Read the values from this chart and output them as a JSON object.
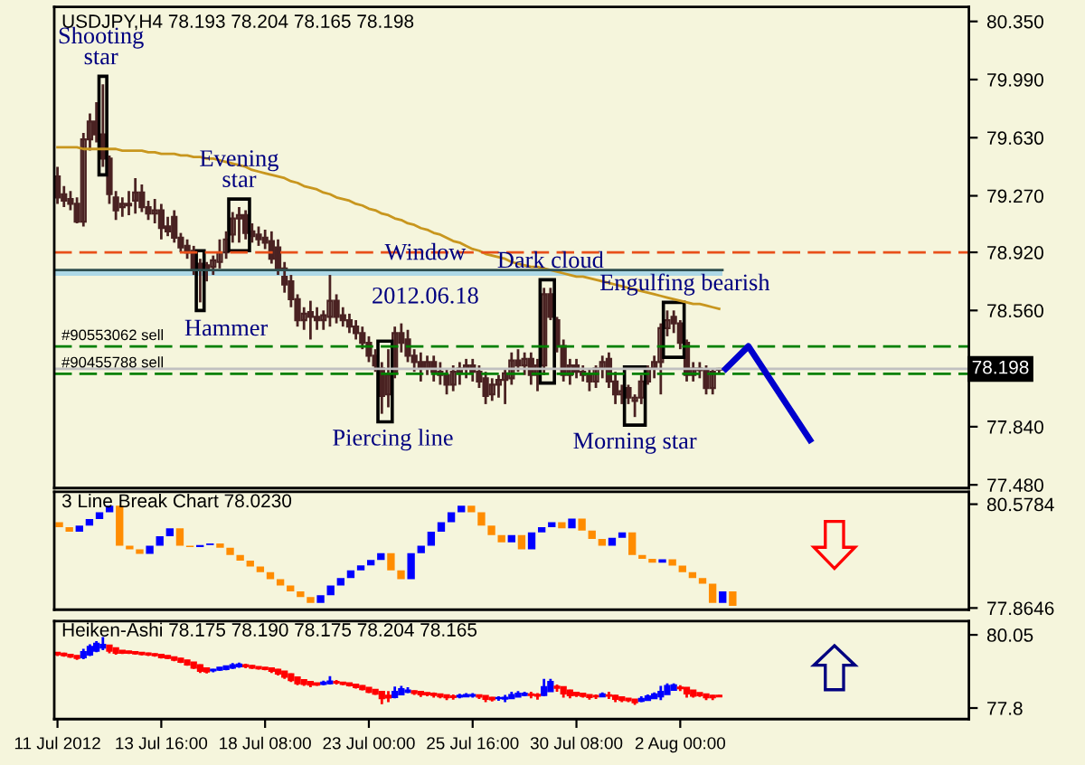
{
  "chart_data": [
    {
      "type": "candlestick",
      "title": "USDJPY,H4 78.193 78.204 78.165 78.198",
      "color": "#4a2222",
      "tick_labels": "y",
      "grid": false,
      "categories": [
        null,
        null,
        null,
        null,
        null,
        null,
        null,
        null,
        null,
        null,
        null,
        null,
        null,
        null,
        null,
        null,
        null,
        null,
        null,
        null,
        null,
        null,
        null,
        null,
        null,
        null,
        null,
        null,
        null,
        null,
        null,
        null,
        null,
        null,
        null,
        null,
        null,
        null,
        null,
        null,
        null,
        null,
        null,
        null,
        null,
        null,
        null,
        null,
        null,
        null,
        null,
        null,
        null,
        null,
        null,
        null,
        null,
        null,
        null,
        null,
        null,
        null,
        null,
        null,
        null,
        null,
        null,
        null,
        null,
        null,
        null,
        null,
        null,
        null,
        null,
        null,
        null,
        null,
        null,
        null,
        null,
        null,
        null,
        null,
        null,
        null,
        null,
        null,
        null,
        null,
        null,
        null,
        null,
        null,
        null,
        null,
        null,
        null,
        null,
        null,
        null,
        null,
        null,
        null,
        null,
        null,
        null,
        null,
        null,
        null,
        null,
        null,
        null,
        null,
        null,
        null,
        null,
        null,
        null,
        null,
        null,
        null,
        null,
        null,
        null,
        null,
        null,
        null,
        null,
        null,
        null,
        null,
        null,
        null,
        null,
        null,
        null,
        null,
        null,
        null,
        null
      ],
      "ohlc": [
        [
          79.39,
          79.45,
          79.22,
          79.26
        ],
        [
          79.28,
          79.33,
          79.2,
          79.24
        ],
        [
          79.25,
          79.3,
          79.18,
          79.22
        ],
        [
          79.22,
          79.26,
          79.1,
          79.11
        ],
        [
          79.11,
          79.66,
          79.08,
          79.62
        ],
        [
          79.62,
          79.78,
          79.55,
          79.73
        ],
        [
          79.73,
          79.85,
          79.6,
          79.65
        ],
        [
          79.65,
          79.96,
          79.45,
          79.5
        ],
        [
          79.5,
          79.52,
          79.22,
          79.28
        ],
        [
          79.26,
          79.3,
          79.12,
          79.18
        ],
        [
          79.2,
          79.26,
          79.14,
          79.22
        ],
        [
          79.22,
          79.3,
          79.15,
          79.21
        ],
        [
          79.24,
          79.38,
          79.16,
          79.29
        ],
        [
          79.29,
          79.34,
          79.17,
          79.2
        ],
        [
          79.2,
          79.24,
          79.12,
          79.16
        ],
        [
          79.16,
          79.25,
          79.1,
          79.18
        ],
        [
          79.18,
          79.22,
          79.0,
          79.07
        ],
        [
          79.08,
          79.14,
          79.02,
          79.05
        ],
        [
          79.14,
          79.18,
          78.98,
          79.01
        ],
        [
          79.01,
          79.04,
          78.92,
          78.95
        ],
        [
          78.96,
          79.0,
          78.88,
          78.92
        ],
        [
          78.93,
          78.96,
          78.78,
          78.82
        ],
        [
          78.85,
          78.88,
          78.61,
          78.8
        ],
        [
          78.8,
          78.86,
          78.74,
          78.84
        ],
        [
          78.83,
          78.9,
          78.78,
          78.87
        ],
        [
          78.86,
          79.0,
          78.82,
          78.92
        ],
        [
          78.92,
          79.05,
          78.88,
          79.0
        ],
        [
          79.03,
          79.17,
          78.98,
          79.13
        ],
        [
          79.13,
          79.2,
          78.98,
          79.15
        ],
        [
          79.15,
          79.18,
          79.0,
          79.04
        ],
        [
          79.05,
          79.1,
          78.98,
          79.02
        ],
        [
          79.03,
          79.08,
          78.96,
          79.0
        ],
        [
          79.01,
          79.06,
          78.94,
          78.98
        ],
        [
          78.99,
          79.05,
          78.85,
          78.88
        ],
        [
          78.95,
          79.0,
          78.78,
          78.82
        ],
        [
          78.82,
          78.86,
          78.67,
          78.72
        ],
        [
          78.74,
          78.78,
          78.58,
          78.63
        ],
        [
          78.63,
          78.66,
          78.46,
          78.5
        ],
        [
          78.5,
          78.58,
          78.44,
          78.54
        ],
        [
          78.55,
          78.62,
          78.38,
          78.52
        ],
        [
          78.52,
          78.58,
          78.44,
          78.5
        ],
        [
          78.5,
          78.56,
          78.44,
          78.53
        ],
        [
          78.52,
          78.78,
          78.46,
          78.62
        ],
        [
          78.62,
          78.66,
          78.48,
          78.52
        ],
        [
          78.53,
          78.58,
          78.46,
          78.5
        ],
        [
          78.5,
          78.54,
          78.42,
          78.46
        ],
        [
          78.46,
          78.5,
          78.38,
          78.42
        ],
        [
          78.42,
          78.46,
          78.32,
          78.36
        ],
        [
          78.36,
          78.4,
          78.24,
          78.28
        ],
        [
          78.28,
          78.32,
          78.18,
          78.22
        ],
        [
          78.2,
          78.24,
          77.92,
          78.03
        ],
        [
          78.04,
          78.32,
          77.96,
          78.16
        ],
        [
          78.17,
          78.46,
          78.14,
          78.42
        ],
        [
          78.42,
          78.48,
          78.3,
          78.36
        ],
        [
          78.38,
          78.44,
          78.24,
          78.28
        ],
        [
          78.28,
          78.32,
          78.18,
          78.24
        ],
        [
          78.24,
          78.3,
          78.12,
          78.2
        ],
        [
          78.2,
          78.28,
          78.16,
          78.24
        ],
        [
          78.24,
          78.28,
          78.12,
          78.18
        ],
        [
          78.18,
          78.24,
          78.1,
          78.16
        ],
        [
          78.16,
          78.2,
          78.04,
          78.1
        ],
        [
          78.1,
          78.22,
          78.06,
          78.18
        ],
        [
          78.18,
          78.24,
          78.1,
          78.2
        ],
        [
          78.2,
          78.26,
          78.14,
          78.22
        ],
        [
          78.22,
          78.26,
          78.12,
          78.18
        ],
        [
          78.18,
          78.22,
          78.08,
          78.12
        ],
        [
          78.14,
          78.18,
          77.98,
          78.03
        ],
        [
          78.04,
          78.14,
          78.0,
          78.1
        ],
        [
          78.1,
          78.16,
          78.02,
          78.13
        ],
        [
          78.13,
          78.2,
          77.98,
          78.17
        ],
        [
          78.14,
          78.3,
          78.1,
          78.25
        ],
        [
          78.25,
          78.32,
          78.18,
          78.22
        ],
        [
          78.22,
          78.3,
          78.16,
          78.26
        ],
        [
          78.26,
          78.3,
          78.1,
          78.16
        ],
        [
          78.16,
          78.26,
          78.06,
          78.22
        ],
        [
          78.22,
          78.7,
          78.16,
          78.66
        ],
        [
          78.66,
          78.7,
          78.5,
          78.52
        ],
        [
          78.5,
          78.52,
          78.3,
          78.34
        ],
        [
          78.34,
          78.38,
          78.12,
          78.16
        ],
        [
          78.16,
          78.26,
          78.1,
          78.22
        ],
        [
          78.22,
          78.26,
          78.14,
          78.18
        ],
        [
          78.18,
          78.22,
          78.12,
          78.16
        ],
        [
          78.16,
          78.2,
          78.06,
          78.12
        ],
        [
          78.12,
          78.22,
          78.08,
          78.2
        ],
        [
          78.2,
          78.28,
          78.14,
          78.24
        ],
        [
          78.26,
          78.3,
          78.08,
          78.12
        ],
        [
          78.12,
          78.18,
          77.98,
          78.04
        ],
        [
          78.04,
          78.1,
          77.98,
          78.06
        ],
        [
          78.08,
          78.1,
          77.98,
          78.02
        ],
        [
          78.0,
          78.04,
          77.9,
          78.02
        ],
        [
          78.02,
          78.16,
          77.98,
          78.12
        ],
        [
          78.12,
          78.22,
          78.1,
          78.2
        ],
        [
          78.2,
          78.28,
          78.14,
          78.24
        ],
        [
          78.24,
          78.48,
          78.04,
          78.45
        ],
        [
          78.45,
          78.56,
          78.4,
          78.5
        ],
        [
          78.52,
          78.56,
          78.42,
          78.48
        ],
        [
          78.48,
          78.5,
          78.32,
          78.36
        ],
        [
          78.36,
          78.38,
          78.12,
          78.16
        ],
        [
          78.16,
          78.24,
          78.12,
          78.2
        ],
        [
          78.2,
          78.24,
          78.14,
          78.19
        ],
        [
          78.19,
          78.22,
          78.04,
          78.08
        ],
        [
          78.08,
          78.2,
          78.04,
          78.18
        ],
        [
          78.193,
          78.204,
          78.165,
          78.198
        ],
        null,
        null,
        null,
        null,
        null,
        null,
        null,
        null,
        null,
        null,
        null,
        null,
        null,
        null,
        null,
        null,
        null,
        null,
        null,
        null,
        null,
        null,
        null,
        null,
        null,
        null,
        null,
        null,
        null,
        null,
        null,
        null,
        null,
        null,
        null,
        null,
        null,
        null
      ],
      "series": [
        {
          "type": "line",
          "color": "#c8961e",
          "values": [
            79.57,
            79.57,
            79.57,
            79.57,
            79.56,
            79.56,
            79.56,
            79.56,
            79.56,
            79.56,
            79.55,
            79.55,
            79.55,
            79.55,
            79.54,
            79.54,
            79.53,
            79.53,
            79.53,
            79.52,
            79.52,
            79.51,
            79.51,
            79.5,
            79.5,
            79.49,
            79.48,
            79.47,
            79.46,
            79.45,
            79.43,
            79.42,
            79.41,
            79.4,
            79.39,
            79.38,
            79.36,
            79.35,
            79.33,
            79.32,
            79.31,
            79.29,
            79.28,
            79.26,
            79.25,
            79.24,
            79.22,
            79.21,
            79.19,
            79.18,
            79.16,
            79.15,
            79.13,
            79.12,
            79.1,
            79.09,
            79.07,
            79.06,
            79.04,
            79.03,
            79.01,
            78.99,
            78.98,
            78.96,
            78.94,
            78.93,
            78.91,
            78.9,
            78.89,
            78.88,
            78.86,
            78.85,
            78.84,
            78.83,
            78.83,
            78.82,
            78.81,
            78.8,
            78.79,
            78.78,
            78.77,
            78.77,
            78.76,
            78.75,
            78.74,
            78.73,
            78.72,
            78.71,
            78.7,
            78.69,
            78.68,
            78.67,
            78.66,
            78.65,
            78.64,
            78.63,
            78.62,
            78.61,
            78.6,
            78.6,
            78.59,
            78.58,
            78.57,
            null,
            null,
            null,
            null,
            null,
            null,
            null,
            null,
            null,
            null,
            null,
            null,
            null,
            null,
            null,
            null,
            null,
            null,
            null,
            null,
            null,
            null,
            null,
            null,
            null,
            null,
            null,
            null,
            null,
            null,
            null,
            null,
            null,
            null,
            null,
            null,
            null,
            null
          ]
        }
      ],
      "ylim": [
        77.46,
        80.44
      ],
      "yticks": [
        {
          "value": 80.35,
          "label": "80.350"
        },
        {
          "value": 79.99,
          "label": "79.990"
        },
        {
          "value": 79.63,
          "label": "79.630"
        },
        {
          "value": 79.27,
          "label": "79.270"
        },
        {
          "value": 78.92,
          "label": "78.920"
        },
        {
          "value": 78.56,
          "label": "78.560"
        },
        {
          "value": 77.84,
          "label": "77.840"
        },
        {
          "value": 77.48,
          "label": "77.480"
        }
      ],
      "ref_lines": [
        {
          "axis": "y",
          "value": 78.92,
          "color": "#e8501a",
          "line_style": "dashed"
        },
        {
          "axis": "y",
          "value": 78.337,
          "label": "#90553062 sell",
          "color": "#008000",
          "line_style": "dashed"
        },
        {
          "axis": "y",
          "value": 78.168,
          "label": "#90455788 sell",
          "color": "#008000",
          "line_style": "dashed"
        },
        {
          "axis": "y",
          "value": 78.198,
          "label": "78.198",
          "color": "#c0c0c0",
          "line_style": "solid"
        }
      ],
      "bands": [
        {
          "axis": "y",
          "from": 78.775,
          "to": 78.81,
          "label": "Window",
          "color": "#add8e6"
        }
      ],
      "annotations": [
        {
          "text": "Shooting\nstar",
          "y": 79.96
        },
        {
          "text": "Evening\nstar",
          "y": 79.2
        },
        "Hammer",
        "2012.06.18",
        {
          "text": "Dark cloud",
          "y": 78.7
        },
        {
          "text": "Engulfing bearish",
          "y": 78.56
        },
        {
          "text": "Piercing line",
          "y": 77.92
        },
        {
          "text": "Morning star",
          "y": 77.9
        }
      ]
    },
    {
      "type": "bar",
      "title": "3 Line Break Chart 78.0230",
      "tick_labels": "y",
      "grid": false,
      "categories": [
        null,
        null,
        null,
        null,
        null,
        null,
        null,
        null,
        null,
        null,
        null,
        null,
        null,
        null,
        null,
        null,
        null,
        null,
        null,
        null,
        null,
        null,
        null,
        null,
        null,
        null,
        null,
        null,
        null,
        null,
        null,
        null,
        null,
        null,
        null,
        null,
        null,
        null,
        null,
        null,
        null,
        null,
        null,
        null,
        null,
        null,
        null,
        null,
        null,
        null,
        null,
        null,
        null,
        null,
        null,
        null,
        null,
        null,
        null,
        null,
        null,
        null,
        null,
        null,
        null,
        null,
        null,
        null,
        null,
        null,
        null,
        null,
        null,
        null,
        null,
        null,
        null,
        null,
        null,
        null,
        null,
        null,
        null,
        null,
        null,
        null,
        null,
        null,
        null,
        null,
        null
      ],
      "base": [
        80.11,
        79.98,
        79.86,
        80.02,
        80.19,
        80.37,
        80.54,
        79.49,
        79.4,
        79.28,
        79.49,
        79.74,
        79.95,
        79.49,
        79.46,
        79.51,
        79.55,
        79.44,
        79.25,
        79.1,
        78.95,
        78.8,
        78.62,
        78.45,
        78.3,
        78.15,
        78.0,
        78.2,
        78.45,
        78.65,
        78.85,
        78.98,
        79.12,
        79.3,
        78.85,
        78.62,
        79.3,
        79.49,
        79.86,
        80.11,
        80.37,
        80.54,
        80.37,
        80.02,
        79.77,
        79.58,
        79.77,
        79.4,
        79.84,
        79.98,
        80.11,
        79.95,
        80.2,
        79.89,
        79.67,
        79.49,
        79.7,
        79.84,
        79.25,
        79.15,
        79.05,
        79.14,
        78.97,
        78.8,
        78.65,
        78.5,
        78.0,
        78.3,
        null,
        null,
        null,
        null,
        null,
        null,
        null,
        null,
        null,
        null,
        null,
        null,
        null,
        null,
        null,
        null,
        null,
        null,
        null,
        null,
        null,
        null,
        null
      ],
      "values": [
        -0.13,
        -0.12,
        0.16,
        0.17,
        0.18,
        0.17,
        -1.05,
        -0.09,
        -0.12,
        0.21,
        0.25,
        0.21,
        -0.46,
        -0.03,
        0.05,
        0.04,
        -0.11,
        -0.19,
        -0.15,
        -0.15,
        -0.15,
        -0.18,
        -0.17,
        -0.15,
        -0.15,
        -0.15,
        0.2,
        0.25,
        0.2,
        0.2,
        0.13,
        0.14,
        0.18,
        -0.45,
        -0.23,
        0.68,
        0.19,
        0.37,
        0.25,
        0.26,
        0.17,
        -0.17,
        -0.35,
        -0.25,
        -0.19,
        0.19,
        -0.37,
        0.44,
        0.14,
        0.13,
        -0.16,
        0.25,
        -0.31,
        -0.22,
        -0.18,
        0.21,
        0.14,
        -0.59,
        -0.1,
        -0.1,
        0.09,
        -0.17,
        -0.17,
        -0.15,
        -0.15,
        -0.5,
        0.3,
        -0.38,
        null,
        null,
        null,
        null,
        null,
        null,
        null,
        null,
        null,
        null,
        null,
        null,
        null,
        null,
        null,
        null,
        null,
        null,
        null,
        null,
        null,
        null,
        null
      ],
      "colors": [
        "#ff8c00",
        "#ff8c00",
        "#0000ff",
        "#0000ff",
        "#0000ff",
        "#0000ff",
        "#ff8c00",
        "#ff8c00",
        "#ff8c00",
        "#0000ff",
        "#0000ff",
        "#0000ff",
        "#ff8c00",
        "#ff8c00",
        "#0000ff",
        "#0000ff",
        "#ff8c00",
        "#ff8c00",
        "#ff8c00",
        "#ff8c00",
        "#ff8c00",
        "#ff8c00",
        "#ff8c00",
        "#ff8c00",
        "#ff8c00",
        "#ff8c00",
        "#0000ff",
        "#0000ff",
        "#0000ff",
        "#0000ff",
        "#0000ff",
        "#0000ff",
        "#0000ff",
        "#ff8c00",
        "#ff8c00",
        "#0000ff",
        "#0000ff",
        "#0000ff",
        "#0000ff",
        "#0000ff",
        "#0000ff",
        "#ff8c00",
        "#ff8c00",
        "#ff8c00",
        "#ff8c00",
        "#0000ff",
        "#ff8c00",
        "#0000ff",
        "#0000ff",
        "#0000ff",
        "#ff8c00",
        "#0000ff",
        "#ff8c00",
        "#ff8c00",
        "#ff8c00",
        "#0000ff",
        "#0000ff",
        "#ff8c00",
        "#ff8c00",
        "#ff8c00",
        "#0000ff",
        "#ff8c00",
        "#ff8c00",
        "#ff8c00",
        "#ff8c00",
        "#ff8c00",
        "#0000ff",
        "#ff8c00",
        null,
        null,
        null,
        null,
        null,
        null,
        null,
        null,
        null,
        null,
        null,
        null,
        null,
        null,
        null,
        null,
        null,
        null,
        null,
        null,
        null,
        null,
        null
      ],
      "ylim": [
        77.82,
        80.9
      ],
      "yticks": [
        80.5784,
        77.8646
      ]
    },
    {
      "type": "candlestick",
      "title": "Heiken-Ashi 78.175 78.190 78.175 78.204 78.165",
      "grid": false,
      "categories": [
        "11 Jul 2012",
        null,
        null,
        null,
        null,
        null,
        null,
        null,
        null,
        null,
        null,
        null,
        null,
        null,
        null,
        null,
        "13 Jul 16:00",
        null,
        null,
        null,
        null,
        null,
        null,
        null,
        null,
        null,
        null,
        null,
        null,
        null,
        null,
        null,
        "18 Jul 08:00",
        null,
        null,
        null,
        null,
        null,
        null,
        null,
        null,
        null,
        null,
        null,
        null,
        null,
        null,
        null,
        "23 Jul 00:00",
        null,
        null,
        null,
        null,
        null,
        null,
        null,
        null,
        null,
        null,
        null,
        null,
        null,
        null,
        null,
        "25 Jul 16:00",
        null,
        null,
        null,
        null,
        null,
        null,
        null,
        null,
        null,
        null,
        null,
        null,
        null,
        null,
        null,
        "30 Jul 08:00",
        null,
        null,
        null,
        null,
        null,
        null,
        null,
        null,
        null,
        null,
        null,
        null,
        null,
        null,
        null,
        "2 Aug 00:00",
        null,
        null,
        null,
        null,
        null,
        null,
        null,
        null,
        null,
        null,
        null,
        null,
        null,
        null,
        null,
        null,
        null,
        null,
        null,
        null,
        null,
        null,
        null,
        null,
        null,
        null,
        null,
        null,
        null,
        null,
        null,
        null,
        null,
        null,
        null,
        null,
        null,
        null,
        null,
        null,
        null,
        null,
        null,
        null
      ],
      "ohlc": [
        [
          79.5,
          79.52,
          79.4,
          79.45
        ],
        [
          79.47,
          79.5,
          79.38,
          79.42
        ],
        [
          79.44,
          79.46,
          79.34,
          79.38
        ],
        [
          79.4,
          79.42,
          79.28,
          79.34
        ],
        [
          79.36,
          79.62,
          79.3,
          79.52
        ],
        [
          79.44,
          79.76,
          79.4,
          79.68
        ],
        [
          79.56,
          79.86,
          79.52,
          79.78
        ],
        [
          79.66,
          79.98,
          79.58,
          79.74
        ],
        [
          79.72,
          79.74,
          79.48,
          79.56
        ],
        [
          79.64,
          79.66,
          79.44,
          79.5
        ],
        [
          79.56,
          79.58,
          79.46,
          79.5
        ],
        [
          79.54,
          79.56,
          79.46,
          79.5
        ],
        [
          79.52,
          79.54,
          79.44,
          79.48
        ],
        [
          79.5,
          79.52,
          79.42,
          79.46
        ],
        [
          79.48,
          79.5,
          79.4,
          79.44
        ],
        [
          79.46,
          79.48,
          79.38,
          79.42
        ],
        [
          79.44,
          79.46,
          79.32,
          79.36
        ],
        [
          79.4,
          79.42,
          79.3,
          79.34
        ],
        [
          79.36,
          79.38,
          79.24,
          79.28
        ],
        [
          79.32,
          79.34,
          79.18,
          79.22
        ],
        [
          79.26,
          79.28,
          79.1,
          79.14
        ],
        [
          79.2,
          79.22,
          79.0,
          79.04
        ],
        [
          79.12,
          79.14,
          78.88,
          78.94
        ],
        [
          79.02,
          79.04,
          78.86,
          78.92
        ],
        [
          78.96,
          79.0,
          78.9,
          78.98
        ],
        [
          78.98,
          79.06,
          78.94,
          79.04
        ],
        [
          79.0,
          79.1,
          78.96,
          79.08
        ],
        [
          79.04,
          79.18,
          79.0,
          79.12
        ],
        [
          79.08,
          79.2,
          79.04,
          79.14
        ],
        [
          79.12,
          79.16,
          79.02,
          79.08
        ],
        [
          79.1,
          79.12,
          79.0,
          79.04
        ],
        [
          79.06,
          79.08,
          78.98,
          79.02
        ],
        [
          79.04,
          79.06,
          78.96,
          79.0
        ],
        [
          79.02,
          79.04,
          78.88,
          78.94
        ],
        [
          78.98,
          79.0,
          78.8,
          78.86
        ],
        [
          78.92,
          78.94,
          78.7,
          78.76
        ],
        [
          78.84,
          78.86,
          78.6,
          78.66
        ],
        [
          78.74,
          78.76,
          78.5,
          78.56
        ],
        [
          78.66,
          78.68,
          78.48,
          78.54
        ],
        [
          78.6,
          78.62,
          78.44,
          78.52
        ],
        [
          78.56,
          78.58,
          78.48,
          78.52
        ],
        [
          78.54,
          78.64,
          78.5,
          78.58
        ],
        [
          78.56,
          78.78,
          78.52,
          78.62
        ],
        [
          78.6,
          78.66,
          78.52,
          78.58
        ],
        [
          78.58,
          78.6,
          78.5,
          78.54
        ],
        [
          78.56,
          78.58,
          78.46,
          78.5
        ],
        [
          78.52,
          78.54,
          78.4,
          78.44
        ],
        [
          78.48,
          78.5,
          78.34,
          78.38
        ],
        [
          78.42,
          78.44,
          78.26,
          78.3
        ],
        [
          78.36,
          78.38,
          78.2,
          78.24
        ],
        [
          78.3,
          78.32,
          77.92,
          78.1
        ],
        [
          78.18,
          78.32,
          77.98,
          78.12
        ],
        [
          78.14,
          78.46,
          78.1,
          78.3
        ],
        [
          78.22,
          78.48,
          78.2,
          78.38
        ],
        [
          78.3,
          78.44,
          78.26,
          78.34
        ],
        [
          78.32,
          78.34,
          78.2,
          78.26
        ],
        [
          78.3,
          78.32,
          78.14,
          78.22
        ],
        [
          78.26,
          78.28,
          78.16,
          78.22
        ],
        [
          78.24,
          78.28,
          78.12,
          78.2
        ],
        [
          78.22,
          78.24,
          78.1,
          78.16
        ],
        [
          78.19,
          78.21,
          78.04,
          78.13
        ],
        [
          78.16,
          78.22,
          78.06,
          78.14
        ],
        [
          78.15,
          78.24,
          78.1,
          78.18
        ],
        [
          78.16,
          78.26,
          78.14,
          78.2
        ],
        [
          78.18,
          78.26,
          78.12,
          78.2
        ],
        [
          78.19,
          78.22,
          78.08,
          78.15
        ],
        [
          78.17,
          78.18,
          77.98,
          78.08
        ],
        [
          78.12,
          78.14,
          78.0,
          78.07
        ],
        [
          78.1,
          78.16,
          78.02,
          78.11
        ],
        [
          78.09,
          78.2,
          77.98,
          78.12
        ],
        [
          78.1,
          78.3,
          78.08,
          78.2
        ],
        [
          78.15,
          78.32,
          78.14,
          78.24
        ],
        [
          78.2,
          78.3,
          78.16,
          78.24
        ],
        [
          78.22,
          78.3,
          78.1,
          78.2
        ],
        [
          78.21,
          78.26,
          78.06,
          78.18
        ],
        [
          78.2,
          78.7,
          78.16,
          78.44
        ],
        [
          78.32,
          78.7,
          78.3,
          78.6
        ],
        [
          78.46,
          78.52,
          78.3,
          78.42
        ],
        [
          78.44,
          78.46,
          78.12,
          78.25
        ],
        [
          78.34,
          78.36,
          78.1,
          78.19
        ],
        [
          78.27,
          78.29,
          78.14,
          78.2
        ],
        [
          78.24,
          78.25,
          78.12,
          78.17
        ],
        [
          78.2,
          78.22,
          78.06,
          78.14
        ],
        [
          78.17,
          78.22,
          78.08,
          78.16
        ],
        [
          78.16,
          78.28,
          78.14,
          78.22
        ],
        [
          78.19,
          78.3,
          78.08,
          78.18
        ],
        [
          78.18,
          78.2,
          77.98,
          78.08
        ],
        [
          78.13,
          78.14,
          77.98,
          78.05
        ],
        [
          78.09,
          78.1,
          77.98,
          78.04
        ],
        [
          78.06,
          78.07,
          77.9,
          77.98
        ],
        [
          78.02,
          78.16,
          77.98,
          78.08
        ],
        [
          78.05,
          78.22,
          78.04,
          78.16
        ],
        [
          78.1,
          78.28,
          78.08,
          78.22
        ],
        [
          78.16,
          78.48,
          78.04,
          78.3
        ],
        [
          78.23,
          78.56,
          78.22,
          78.48
        ],
        [
          78.36,
          78.56,
          78.34,
          78.5
        ],
        [
          78.43,
          78.5,
          78.32,
          78.41
        ],
        [
          78.42,
          78.44,
          78.12,
          78.25
        ],
        [
          78.34,
          78.35,
          78.12,
          78.18
        ],
        [
          78.26,
          78.27,
          78.14,
          78.19
        ],
        [
          78.22,
          78.23,
          78.04,
          78.13
        ],
        [
          78.18,
          78.2,
          78.04,
          78.13
        ],
        [
          78.16,
          78.2,
          78.15,
          78.18
        ],
        null,
        null,
        null,
        null,
        null,
        null,
        null,
        null,
        null,
        null,
        null,
        null,
        null,
        null,
        null,
        null,
        null,
        null,
        null,
        null,
        null,
        null,
        null,
        null,
        null,
        null,
        null,
        null,
        null,
        null,
        null,
        null,
        null,
        null,
        null,
        null,
        null,
        null
      ],
      "colors": [
        "#ff0000",
        "#ff0000",
        "#ff0000",
        "#ff0000",
        "#0000ff",
        "#0000ff",
        "#0000ff",
        "#0000ff",
        "#ff0000",
        "#ff0000",
        "#ff0000",
        "#ff0000",
        "#ff0000",
        "#ff0000",
        "#ff0000",
        "#ff0000",
        "#ff0000",
        "#ff0000",
        "#ff0000",
        "#ff0000",
        "#ff0000",
        "#ff0000",
        "#ff0000",
        "#ff0000",
        "#0000ff",
        "#0000ff",
        "#0000ff",
        "#0000ff",
        "#0000ff",
        "#ff0000",
        "#ff0000",
        "#ff0000",
        "#ff0000",
        "#ff0000",
        "#ff0000",
        "#ff0000",
        "#ff0000",
        "#ff0000",
        "#ff0000",
        "#ff0000",
        "#ff0000",
        "#0000ff",
        "#0000ff",
        "#ff0000",
        "#ff0000",
        "#ff0000",
        "#ff0000",
        "#ff0000",
        "#ff0000",
        "#ff0000",
        "#ff0000",
        "#ff0000",
        "#0000ff",
        "#0000ff",
        "#0000ff",
        "#ff0000",
        "#ff0000",
        "#ff0000",
        "#ff0000",
        "#ff0000",
        "#ff0000",
        "#ff0000",
        "#0000ff",
        "#0000ff",
        "#0000ff",
        "#ff0000",
        "#ff0000",
        "#ff0000",
        "#0000ff",
        "#0000ff",
        "#0000ff",
        "#0000ff",
        "#0000ff",
        "#ff0000",
        "#ff0000",
        "#0000ff",
        "#0000ff",
        "#ff0000",
        "#ff0000",
        "#ff0000",
        "#ff0000",
        "#ff0000",
        "#ff0000",
        "#ff0000",
        "#0000ff",
        "#ff0000",
        "#ff0000",
        "#ff0000",
        "#ff0000",
        "#ff0000",
        "#0000ff",
        "#0000ff",
        "#0000ff",
        "#0000ff",
        "#0000ff",
        "#0000ff",
        "#ff0000",
        "#ff0000",
        "#ff0000",
        "#ff0000",
        "#ff0000",
        "#ff0000",
        "#ff0000",
        null,
        null,
        null,
        null,
        null,
        null,
        null,
        null,
        null,
        null,
        null,
        null,
        null,
        null,
        null,
        null,
        null,
        null,
        null,
        null,
        null,
        null,
        null,
        null,
        null,
        null,
        null,
        null,
        null,
        null,
        null,
        null,
        null,
        null,
        null,
        null,
        null,
        null
      ],
      "ylim": [
        77.46,
        80.47
      ],
      "yticks": [
        80.05,
        77.8
      ]
    }
  ]
}
